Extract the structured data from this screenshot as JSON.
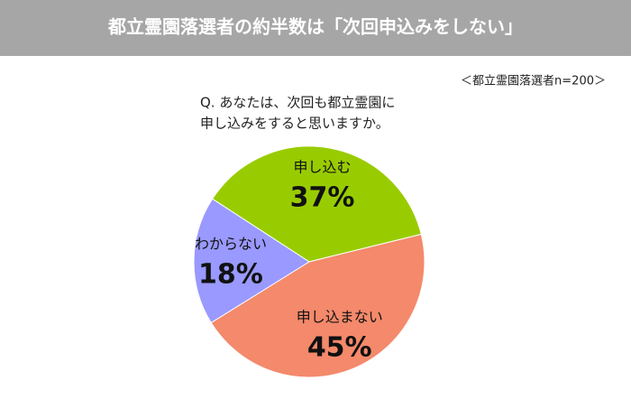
{
  "chart_data": {
    "type": "pie",
    "title": "都立霊園落選者の約半数は「次回申込みをしない」",
    "note": "＜都立霊園落選者n=200＞",
    "question": [
      "Q. あなたは、次回も都立霊園に",
      "申し込みをすると思いますか。"
    ],
    "categories": [
      "申し込む",
      "申し込まない",
      "わからない"
    ],
    "values": [
      37,
      45,
      18
    ],
    "value_labels": [
      "37%",
      "45%",
      "18%"
    ],
    "colors": [
      "#99cc00",
      "#f4896b",
      "#9999ff"
    ]
  }
}
